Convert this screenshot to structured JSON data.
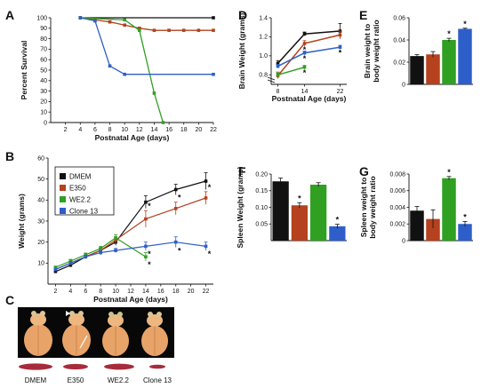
{
  "colors": {
    "DMEM": "#111111",
    "E350": "#b5411e",
    "WE2.2": "#2fa021",
    "Clone 13": "#2e5ec9"
  },
  "panel_letters": [
    "A",
    "B",
    "C",
    "D",
    "E",
    "F",
    "G"
  ],
  "photo_labels": [
    "DMEM",
    "E350",
    "WE2.2",
    "Clone 13"
  ],
  "chart_data": [
    {
      "panel": "A",
      "type": "line",
      "title": "",
      "xlabel": "Postnatal Age (days)",
      "ylabel": "Percent Survival",
      "xlim": [
        0,
        22
      ],
      "ylim": [
        0,
        100
      ],
      "xticks": [
        2,
        4,
        6,
        8,
        10,
        12,
        14,
        16,
        18,
        20,
        22
      ],
      "yticks": [
        0,
        10,
        20,
        30,
        40,
        50,
        60,
        70,
        80,
        90,
        100
      ],
      "series": [
        {
          "name": "DMEM",
          "x": [
            4,
            22
          ],
          "y": [
            100,
            100
          ]
        },
        {
          "name": "E350",
          "x": [
            4,
            6,
            8,
            10,
            12,
            14,
            16,
            18,
            20,
            22
          ],
          "y": [
            100,
            98,
            96,
            93,
            90,
            88,
            88,
            88,
            88,
            88
          ]
        },
        {
          "name": "WE2.2",
          "x": [
            4,
            10,
            12,
            14,
            15.2
          ],
          "y": [
            100,
            98,
            88,
            28,
            0
          ]
        },
        {
          "name": "Clone 13",
          "x": [
            4,
            6,
            8,
            10,
            22
          ],
          "y": [
            100,
            97,
            54,
            46,
            46
          ]
        }
      ]
    },
    {
      "panel": "B",
      "type": "line",
      "title": "",
      "xlabel": "Postnatal Age (days)",
      "ylabel": "Weight (grams)",
      "xlim": [
        1,
        23
      ],
      "ylim": [
        0,
        60
      ],
      "xticks": [
        2,
        4,
        6,
        8,
        10,
        12,
        14,
        16,
        18,
        20,
        22
      ],
      "yticks": [
        10,
        20,
        30,
        40,
        50,
        60
      ],
      "legend": "top-left",
      "series": [
        {
          "name": "DMEM",
          "x": [
            2,
            4,
            6,
            8,
            10,
            14,
            18,
            22
          ],
          "y": [
            6,
            9,
            13,
            16,
            20,
            39,
            45,
            49
          ],
          "err": [
            0.5,
            0.8,
            0.8,
            1,
            1.5,
            3,
            2.5,
            4
          ],
          "sig": []
        },
        {
          "name": "E350",
          "x": [
            2,
            4,
            6,
            8,
            10,
            14,
            18,
            22
          ],
          "y": [
            7,
            10,
            13,
            16,
            21,
            31,
            36,
            41
          ],
          "err": [
            0.5,
            0.8,
            0.8,
            1,
            1.5,
            4,
            3,
            3
          ],
          "sig": [
            14,
            18,
            22
          ]
        },
        {
          "name": "WE2.2",
          "x": [
            2,
            4,
            6,
            8,
            10,
            14
          ],
          "y": [
            8,
            11,
            14,
            17,
            22,
            13
          ],
          "err": [
            0.5,
            0.8,
            0.8,
            1,
            1.5,
            2
          ],
          "sig": [
            14
          ]
        },
        {
          "name": "Clone 13",
          "x": [
            2,
            4,
            6,
            8,
            10,
            14,
            18,
            22
          ],
          "y": [
            7,
            10,
            13,
            15,
            16,
            18,
            20,
            18
          ],
          "err": [
            0.5,
            0.8,
            0.8,
            1,
            1,
            2,
            2.5,
            2
          ],
          "sig": [
            14,
            18,
            22
          ]
        }
      ]
    },
    {
      "panel": "D",
      "type": "line",
      "title": "",
      "xlabel": "Postnatal Age (days)",
      "ylabel": "Brain Weight (grams)",
      "xlim": [
        6.5,
        23.5
      ],
      "ylim": [
        0.7,
        1.4
      ],
      "xticks": [
        8,
        14,
        22
      ],
      "yticks": [
        0.8,
        1.0,
        1.2,
        1.4
      ],
      "series": [
        {
          "name": "DMEM",
          "x": [
            8,
            14,
            22
          ],
          "y": [
            0.92,
            1.23,
            1.26
          ],
          "err": [
            0.03,
            0.02,
            0.08
          ],
          "sig": []
        },
        {
          "name": "E350",
          "x": [
            8,
            14,
            22
          ],
          "y": [
            0.79,
            1.13,
            1.22
          ],
          "err": [
            0.03,
            0.03,
            0.04
          ],
          "sig": [
            14
          ]
        },
        {
          "name": "WE2.2",
          "x": [
            8,
            14
          ],
          "y": [
            0.8,
            0.88
          ],
          "err": [
            0.03,
            0.02
          ],
          "sig": [
            14
          ]
        },
        {
          "name": "Clone 13",
          "x": [
            8,
            14,
            22
          ],
          "y": [
            0.89,
            1.03,
            1.09
          ],
          "err": [
            0.02,
            0.02,
            0.02
          ],
          "sig": [
            14,
            22
          ]
        }
      ]
    },
    {
      "panel": "E",
      "type": "bar",
      "title": "",
      "ylabel": "Brain weight to body weight ratio",
      "ylim": [
        0,
        0.06
      ],
      "yticks": [
        0,
        0.02,
        0.04,
        0.06
      ],
      "ytick_labels": [
        "0",
        "0.02",
        "0.04",
        "0.06"
      ],
      "categories": [
        "DMEM",
        "E350",
        "WE2.2",
        "Clone 13"
      ],
      "values": [
        0.0255,
        0.027,
        0.04,
        0.05
      ],
      "err": [
        0.0012,
        0.0025,
        0.0015,
        0.0006
      ],
      "sig": [
        false,
        false,
        true,
        true
      ]
    },
    {
      "panel": "F",
      "type": "bar",
      "title": "",
      "ylabel": "Spleen Weight (grams)",
      "ylim": [
        0,
        0.2
      ],
      "yticks": [
        0.05,
        0.1,
        0.15,
        0.2
      ],
      "ytick_labels": [
        "0.05",
        "0.10",
        "0.15",
        "0.20"
      ],
      "categories": [
        "DMEM",
        "E350",
        "WE2.2",
        "Clone 13"
      ],
      "values": [
        0.178,
        0.106,
        0.168,
        0.043
      ],
      "err": [
        0.01,
        0.008,
        0.006,
        0.006
      ],
      "sig": [
        false,
        true,
        false,
        true
      ]
    },
    {
      "panel": "G",
      "type": "bar",
      "title": "",
      "ylabel": "Spleen weight to body weight ratio",
      "ylim": [
        0,
        0.008
      ],
      "yticks": [
        0,
        0.002,
        0.004,
        0.006,
        0.008
      ],
      "ytick_labels": [
        "0",
        "0.002",
        "0.004",
        "0.006",
        "0.008"
      ],
      "categories": [
        "DMEM",
        "E350",
        "WE2.2",
        "Clone 13"
      ],
      "values": [
        0.0036,
        0.0026,
        0.0075,
        0.002
      ],
      "err": [
        0.0005,
        0.0011,
        0.0002,
        0.0003
      ],
      "sig": [
        false,
        false,
        true,
        true
      ]
    }
  ]
}
